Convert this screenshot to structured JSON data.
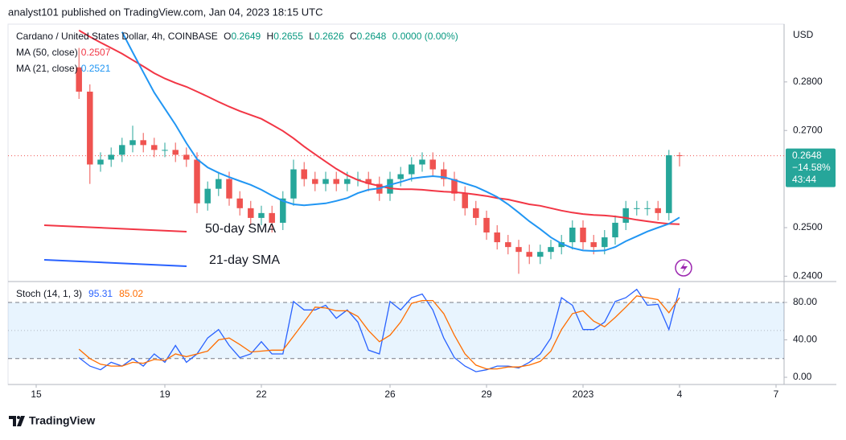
{
  "header": "analyst101 published on TradingView.com, Jan 04, 2023 18:15 UTC",
  "footer": "TradingView",
  "chart_data": [
    {
      "type": "candlestick",
      "title": "Cardano / United States Dollar, 4h, COINBASE",
      "ohlc_labels": [
        "O",
        "H",
        "L",
        "C"
      ],
      "change": "0.0000 (0.00%)",
      "currency": "USD",
      "up_color": "#26a69a",
      "down_color": "#ef5350",
      "x": [
        16.33,
        16.67,
        17,
        17.33,
        17.67,
        18,
        18.33,
        18.67,
        19,
        19.33,
        19.67,
        20,
        20.33,
        20.67,
        21,
        21.33,
        21.67,
        22,
        22.33,
        22.67,
        23,
        23.33,
        23.67,
        24,
        24.33,
        24.67,
        25,
        25.33,
        25.67,
        26,
        26.33,
        26.67,
        27,
        27.33,
        27.67,
        28,
        28.33,
        28.67,
        29,
        29.33,
        29.67,
        30,
        30.33,
        30.67,
        31,
        31.33,
        31.67,
        32,
        32.33,
        32.67,
        33,
        33.33,
        33.67,
        34,
        34.33,
        34.67,
        35
      ],
      "open": [
        0.283,
        0.278,
        0.263,
        0.264,
        0.265,
        0.267,
        0.268,
        0.267,
        0.266,
        0.266,
        0.265,
        0.264,
        0.255,
        0.258,
        0.26,
        0.256,
        0.254,
        0.252,
        0.253,
        0.251,
        0.256,
        0.262,
        0.26,
        0.259,
        0.26,
        0.259,
        0.26,
        0.26,
        0.259,
        0.257,
        0.26,
        0.261,
        0.263,
        0.264,
        0.262,
        0.26,
        0.257,
        0.254,
        0.252,
        0.249,
        0.247,
        0.246,
        0.245,
        0.244,
        0.245,
        0.246,
        0.247,
        0.25,
        0.247,
        0.246,
        0.248,
        0.251,
        0.254,
        0.254,
        0.254,
        0.253,
        0.2649
      ],
      "high": [
        0.287,
        0.2795,
        0.2655,
        0.2665,
        0.2685,
        0.271,
        0.2695,
        0.2685,
        0.2675,
        0.2675,
        0.2665,
        0.2655,
        0.2595,
        0.2615,
        0.2615,
        0.2575,
        0.2555,
        0.2545,
        0.2545,
        0.2575,
        0.264,
        0.2635,
        0.2615,
        0.2615,
        0.2615,
        0.2615,
        0.2615,
        0.2615,
        0.2605,
        0.2615,
        0.2625,
        0.2645,
        0.2655,
        0.2655,
        0.2635,
        0.2615,
        0.2585,
        0.2555,
        0.2535,
        0.2505,
        0.2485,
        0.2475,
        0.2465,
        0.2465,
        0.2475,
        0.2485,
        0.2515,
        0.2515,
        0.2485,
        0.2495,
        0.2525,
        0.2555,
        0.2555,
        0.2555,
        0.2555,
        0.266,
        0.2655
      ],
      "low": [
        0.2765,
        0.259,
        0.2615,
        0.2625,
        0.2635,
        0.2655,
        0.2655,
        0.2645,
        0.2645,
        0.2635,
        0.2625,
        0.253,
        0.2535,
        0.2565,
        0.2545,
        0.2525,
        0.2505,
        0.2505,
        0.249,
        0.2495,
        0.2545,
        0.2585,
        0.2575,
        0.2575,
        0.2575,
        0.2575,
        0.2585,
        0.2575,
        0.2555,
        0.2555,
        0.2585,
        0.2595,
        0.2615,
        0.2605,
        0.2585,
        0.2555,
        0.2525,
        0.2505,
        0.2475,
        0.2455,
        0.2445,
        0.2405,
        0.2425,
        0.2425,
        0.2435,
        0.2445,
        0.2455,
        0.2455,
        0.2445,
        0.2445,
        0.2465,
        0.2495,
        0.2525,
        0.2525,
        0.2515,
        0.2515,
        0.2626
      ],
      "close": [
        0.278,
        0.263,
        0.264,
        0.265,
        0.267,
        0.268,
        0.267,
        0.266,
        0.266,
        0.265,
        0.264,
        0.255,
        0.258,
        0.26,
        0.256,
        0.254,
        0.252,
        0.253,
        0.251,
        0.256,
        0.262,
        0.26,
        0.259,
        0.26,
        0.259,
        0.26,
        0.26,
        0.259,
        0.257,
        0.26,
        0.261,
        0.263,
        0.264,
        0.262,
        0.26,
        0.257,
        0.254,
        0.252,
        0.249,
        0.247,
        0.246,
        0.245,
        0.244,
        0.245,
        0.246,
        0.247,
        0.25,
        0.247,
        0.246,
        0.248,
        0.251,
        0.254,
        0.254,
        0.254,
        0.253,
        0.2649,
        0.2648
      ],
      "series": [
        {
          "name": "MA (50, close)",
          "color": "#f23645",
          "values": [
            0.2906,
            0.2893,
            0.2881,
            0.287,
            0.2858,
            0.2845,
            0.2832,
            0.2818,
            0.2807,
            0.2798,
            0.279,
            0.278,
            0.277,
            0.2759,
            0.2749,
            0.274,
            0.2732,
            0.2724,
            0.2712,
            0.2699,
            0.2684,
            0.2667,
            0.2651,
            0.2636,
            0.2621,
            0.2608,
            0.2598,
            0.2591,
            0.2586,
            0.2581,
            0.2579,
            0.2579,
            0.2578,
            0.2576,
            0.2574,
            0.2573,
            0.2571,
            0.2568,
            0.2565,
            0.2561,
            0.2558,
            0.2553,
            0.2548,
            0.2545,
            0.254,
            0.2535,
            0.2531,
            0.2528,
            0.2526,
            0.2525,
            0.2523,
            0.252,
            0.2516,
            0.2513,
            0.251,
            0.2508,
            0.2507
          ]
        },
        {
          "name": "MA (21, close)",
          "color": "#2196f3",
          "values": [
            null,
            null,
            null,
            null,
            0.2903,
            0.2861,
            0.282,
            0.2778,
            0.2745,
            0.2712,
            0.2674,
            0.2641,
            0.2624,
            0.2613,
            0.2604,
            0.2596,
            0.2588,
            0.2578,
            0.2566,
            0.2555,
            0.2548,
            0.2546,
            0.2548,
            0.255,
            0.2555,
            0.2561,
            0.2571,
            0.2578,
            0.2581,
            0.2588,
            0.2594,
            0.2601,
            0.2604,
            0.2606,
            0.2604,
            0.2598,
            0.2591,
            0.2584,
            0.2574,
            0.2563,
            0.2548,
            0.2531,
            0.2513,
            0.2497,
            0.248,
            0.2467,
            0.2458,
            0.2453,
            0.2452,
            0.2453,
            0.246,
            0.2472,
            0.2482,
            0.2492,
            0.25,
            0.2508,
            0.2521
          ]
        }
      ],
      "last_price_change": "−14.58%",
      "countdown": "43:44",
      "annotations": [
        {
          "text": "50-day SMA",
          "color": "#f23645"
        },
        {
          "text": "21-day SMA",
          "color": "#2962ff"
        }
      ],
      "xlim": [
        14.125,
        38.25
      ],
      "ylim": [
        0.2389,
        0.2919
      ],
      "yticks": [
        {
          "value": 0.24,
          "label": "0.2400"
        },
        {
          "value": 0.25,
          "label": "0.2500"
        },
        {
          "value": 0.27,
          "label": "0.2700"
        },
        {
          "value": 0.28,
          "label": "0.2800"
        }
      ]
    },
    {
      "type": "line",
      "title": "Stoch (14, 1, 3)",
      "series": [
        {
          "color": "#2962ff",
          "values": [
            21,
            12,
            8,
            16,
            12,
            20,
            12,
            25,
            16,
            34,
            16,
            25,
            42,
            51,
            34,
            21,
            25,
            38,
            25,
            25,
            81,
            72,
            72,
            77,
            63,
            72,
            59,
            29,
            25,
            81,
            72,
            85,
            89,
            72,
            42,
            21,
            12,
            6,
            8,
            12,
            12,
            10,
            16,
            25,
            42,
            85,
            77,
            51,
            51,
            59,
            81,
            85,
            94,
            77,
            78,
            51,
            95.31
          ]
        },
        {
          "color": "#ff6d00",
          "values": [
            30,
            20,
            14,
            12,
            12,
            16,
            15,
            19,
            18,
            25,
            22,
            25,
            28,
            40,
            42,
            35,
            27,
            28,
            29,
            29,
            44,
            59,
            75,
            74,
            71,
            71,
            65,
            50,
            38,
            45,
            59,
            79,
            82,
            82,
            68,
            45,
            25,
            13,
            9,
            9,
            11,
            11,
            13,
            17,
            28,
            51,
            68,
            71,
            60,
            54,
            64,
            75,
            87,
            85,
            83,
            69,
            85.02
          ]
        }
      ],
      "band": [
        20,
        80
      ],
      "band_color": "#2196f3",
      "midline": 50,
      "ylim": [
        -7.7,
        100.6
      ],
      "yticks": [
        {
          "value": 0,
          "label": "0.00"
        },
        {
          "value": 40,
          "label": "40.00"
        },
        {
          "value": 80,
          "label": "80.00"
        }
      ],
      "xticks": [
        15,
        19,
        22,
        26,
        29,
        {
          "value": 32,
          "label": "2023"
        },
        {
          "value": 35,
          "label": "4"
        },
        {
          "value": 38,
          "label": "7"
        }
      ]
    }
  ]
}
